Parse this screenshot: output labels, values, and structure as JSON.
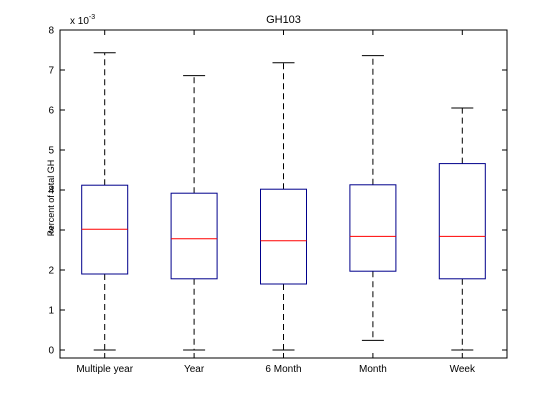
{
  "chart_data": {
    "type": "boxplot",
    "title": "GH103",
    "xlabel": "",
    "ylabel": "Percent of total GH",
    "y_multiplier_text": "x 10",
    "y_multiplier_exponent": "-3",
    "ylim": [
      -0.0002,
      0.008
    ],
    "yticks": [
      0,
      1,
      2,
      3,
      4,
      5,
      6,
      7,
      8
    ],
    "ytick_scale": 0.001,
    "categories": [
      "Multiple year",
      "Year",
      "6 Month",
      "Month",
      "Week"
    ],
    "boxes": [
      {
        "category": "Multiple year",
        "min": 0.0,
        "q1": 0.0019,
        "median": 0.00302,
        "q3": 0.00412,
        "max": 0.00743
      },
      {
        "category": "Year",
        "min": 0.0,
        "q1": 0.00178,
        "median": 0.00278,
        "q3": 0.00392,
        "max": 0.00686
      },
      {
        "category": "6 Month",
        "min": 0.0,
        "q1": 0.00165,
        "median": 0.00273,
        "q3": 0.00402,
        "max": 0.00718
      },
      {
        "category": "Month",
        "min": 0.00024,
        "q1": 0.00197,
        "median": 0.00284,
        "q3": 0.00413,
        "max": 0.00736
      },
      {
        "category": "Week",
        "min": 0.0,
        "q1": 0.00178,
        "median": 0.00284,
        "q3": 0.00466,
        "max": 0.00605
      }
    ],
    "grid": false,
    "colors": {
      "box": "#00008b",
      "median": "#ff0000",
      "whisker": "#000000",
      "axes": "#000000"
    }
  }
}
